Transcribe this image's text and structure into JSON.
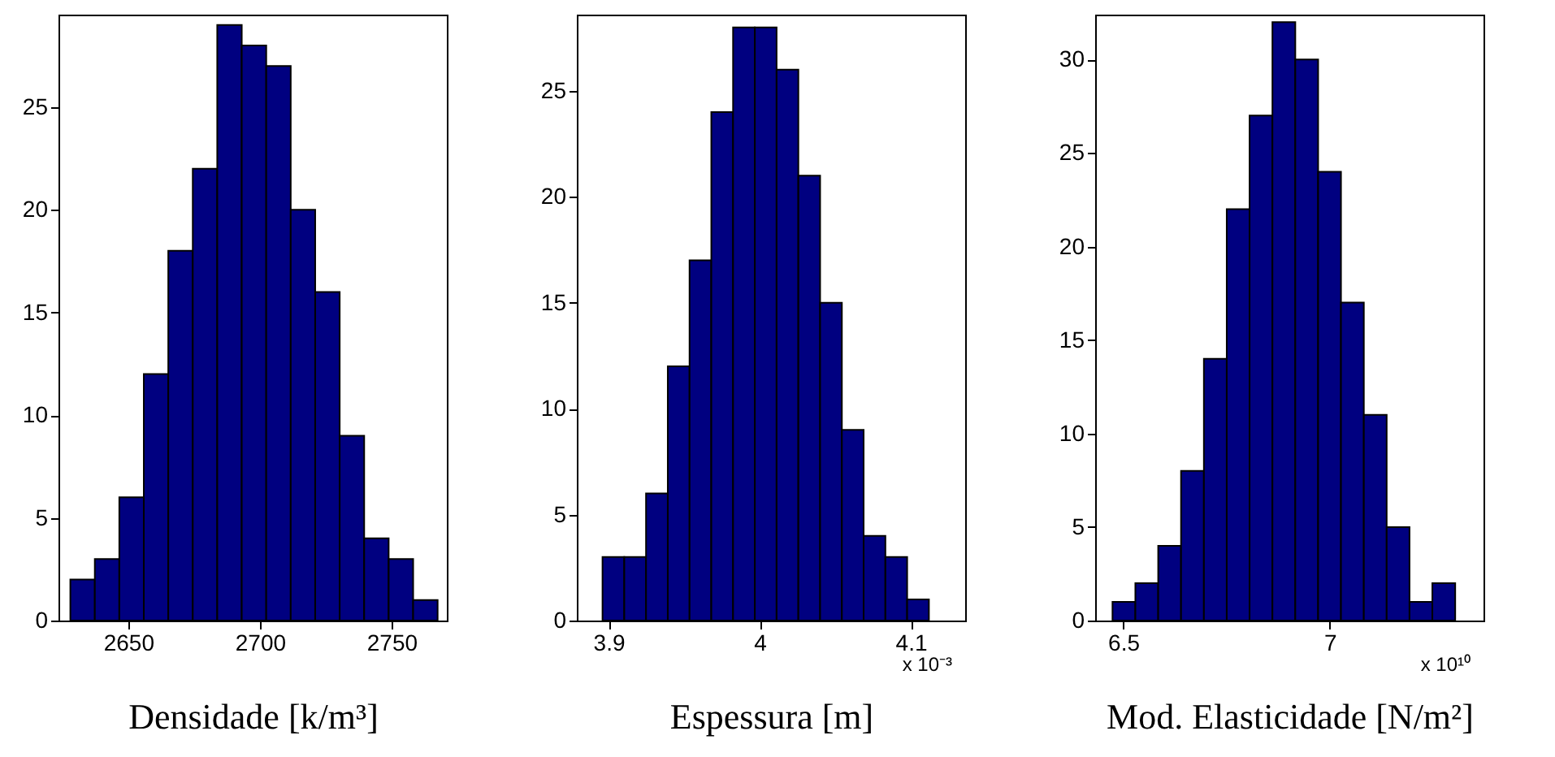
{
  "chart_data": [
    {
      "type": "histogram",
      "xlabel": "Densidade [k/m³]",
      "color": "#000080",
      "bins": [
        2628,
        2637.3,
        2646.6,
        2655.9,
        2665.2,
        2674.5,
        2683.8,
        2693.1,
        2702.4,
        2711.7,
        2721,
        2730.3,
        2739.6,
        2748.9,
        2758.2,
        2767.5
      ],
      "values": [
        2,
        3,
        6,
        12,
        18,
        22,
        29,
        28,
        27,
        20,
        16,
        9,
        4,
        3,
        1
      ],
      "xlim": [
        2623.5,
        2771
      ],
      "xticks": [
        2650,
        2700,
        2750
      ],
      "ylim": [
        0,
        29.5
      ],
      "yticks": [
        0,
        5,
        10,
        15,
        20,
        25
      ]
    },
    {
      "type": "histogram",
      "xlabel": "Espessura [m]",
      "color": "#000080",
      "bins": [
        3.896,
        3.9104,
        3.9248,
        3.9392,
        3.9536,
        3.968,
        3.9824,
        3.9968,
        4.0112,
        4.0256,
        4.04,
        4.0544,
        4.0688,
        4.0832,
        4.0976,
        4.112
      ],
      "values": [
        3,
        3,
        6,
        12,
        17,
        24,
        28,
        28,
        26,
        21,
        15,
        9,
        4,
        3,
        1
      ],
      "xlim": [
        3.879,
        4.136
      ],
      "xticks": [
        3.9,
        4,
        4.1
      ],
      "ylim": [
        0,
        28.6
      ],
      "yticks": [
        0,
        5,
        10,
        15,
        20,
        25
      ],
      "annotations": [
        "x 10⁻³"
      ]
    },
    {
      "type": "histogram",
      "xlabel": "Mod. Elasticidade [N/m²]",
      "color": "#000080",
      "bins": [
        6.474,
        6.5293,
        6.5846,
        6.6399,
        6.6952,
        6.7505,
        6.8058,
        6.8611,
        6.9164,
        6.9717,
        7.027,
        7.0823,
        7.1376,
        7.1929,
        7.2482,
        7.3035
      ],
      "values": [
        1,
        2,
        4,
        8,
        14,
        22,
        27,
        32,
        30,
        24,
        17,
        11,
        5,
        1,
        2
      ],
      "xlim": [
        6.432,
        7.372
      ],
      "xticks": [
        6.5,
        7
      ],
      "ylim": [
        0,
        32.4
      ],
      "yticks": [
        0,
        5,
        10,
        15,
        20,
        25,
        30
      ],
      "annotations": [
        "x 10¹⁰"
      ]
    }
  ]
}
